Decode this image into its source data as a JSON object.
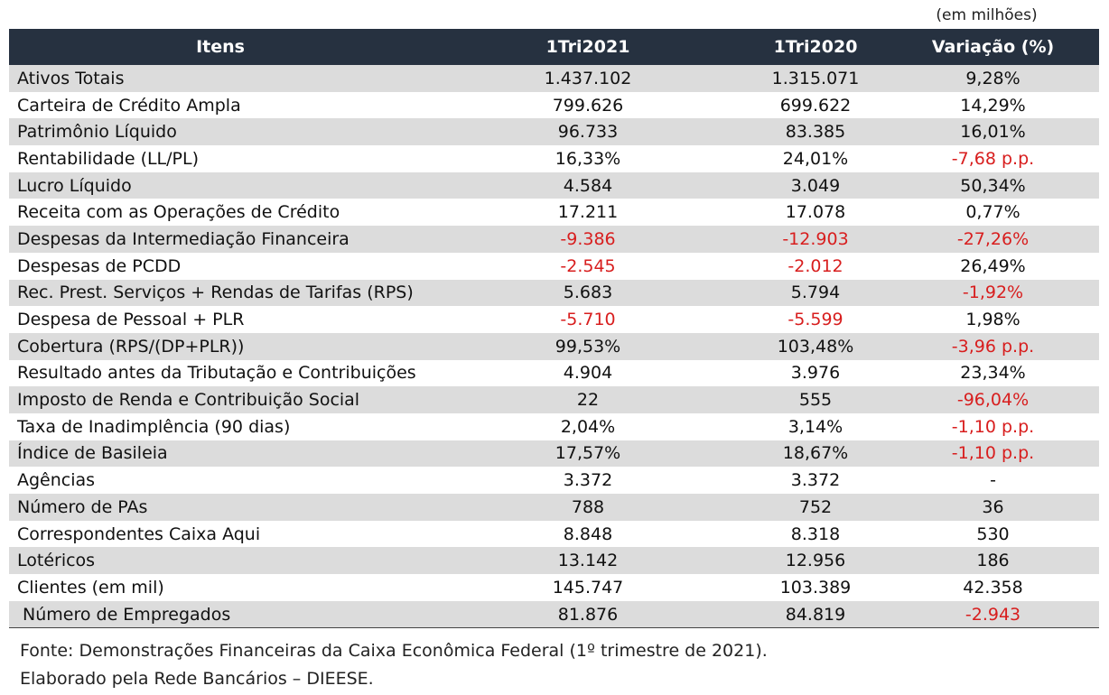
{
  "unit_note": "(em milhões)",
  "headers": [
    "Itens",
    "1Tri2021",
    "1Tri2020",
    "Variação (%)"
  ],
  "rows": [
    {
      "item": "Ativos Totais",
      "t2021": "1.437.102",
      "t2020": "1.315.071",
      "var": "9,28%"
    },
    {
      "item": "Carteira de Crédito Ampla",
      "t2021": "799.626",
      "t2020": "699.622",
      "var": "14,29%"
    },
    {
      "item": "Patrimônio Líquido",
      "t2021": "96.733",
      "t2020": "83.385",
      "var": "16,01%"
    },
    {
      "item": "Rentabilidade (LL/PL)",
      "t2021": "16,33%",
      "t2020": "24,01%",
      "var": "-7,68 p.p."
    },
    {
      "item": "Lucro Líquido",
      "t2021": "4.584",
      "t2020": "3.049",
      "var": "50,34%"
    },
    {
      "item": "Receita com as Operações de Crédito",
      "t2021": "17.211",
      "t2020": "17.078",
      "var": "0,77%"
    },
    {
      "item": "Despesas da Intermediação Financeira",
      "t2021": "-9.386",
      "t2020": "-12.903",
      "var": "-27,26%"
    },
    {
      "item": "Despesas de PCDD",
      "t2021": "-2.545",
      "t2020": "-2.012",
      "var": "26,49%"
    },
    {
      "item": "Rec. Prest. Serviços + Rendas de Tarifas (RPS)",
      "t2021": "5.683",
      "t2020": "5.794",
      "var": "-1,92%"
    },
    {
      "item": "Despesa de Pessoal + PLR",
      "t2021": "-5.710",
      "t2020": "-5.599",
      "var": "1,98%"
    },
    {
      "item": "Cobertura (RPS/(DP+PLR))",
      "t2021": "99,53%",
      "t2020": "103,48%",
      "var": "-3,96 p.p."
    },
    {
      "item": "Resultado antes da Tributação e Contribuições",
      "t2021": "4.904",
      "t2020": "3.976",
      "var": "23,34%"
    },
    {
      "item": "Imposto de Renda e Contribuição Social",
      "t2021": "22",
      "t2020": "555",
      "var": "-96,04%"
    },
    {
      "item": "Taxa de Inadimplência (90 dias)",
      "t2021": "2,04%",
      "t2020": "3,14%",
      "var": "-1,10 p.p."
    },
    {
      "item": "Índice de Basileia",
      "t2021": "17,57%",
      "t2020": "18,67%",
      "var": "-1,10 p.p."
    },
    {
      "item": "Agências",
      "t2021": "3.372",
      "t2020": "3.372",
      "var": "-"
    },
    {
      "item": "Número de PAs",
      "t2021": "788",
      "t2020": "752",
      "var": "36"
    },
    {
      "item": "Correspondentes Caixa Aqui",
      "t2021": "8.848",
      "t2020": "8.318",
      "var": "530"
    },
    {
      "item": "Lotéricos",
      "t2021": "13.142",
      "t2020": "12.956",
      "var": "186"
    },
    {
      "item": "Clientes (em mil)",
      "t2021": "145.747",
      "t2020": "103.389",
      "var": "42.358"
    },
    {
      "item": "Número de Empregados",
      "t2021": "81.876",
      "t2020": "84.819",
      "var": "-2.943"
    }
  ],
  "footer": {
    "source": "Fonte: Demonstrações Financeiras da Caixa Econômica Federal (1º trimestre de 2021).",
    "credit": "Elaborado pela Rede Bancários – DIEESE."
  },
  "colors": {
    "header_bg": "#263140",
    "stripe": "#dcdcdc",
    "negative": "#d81e1e"
  }
}
